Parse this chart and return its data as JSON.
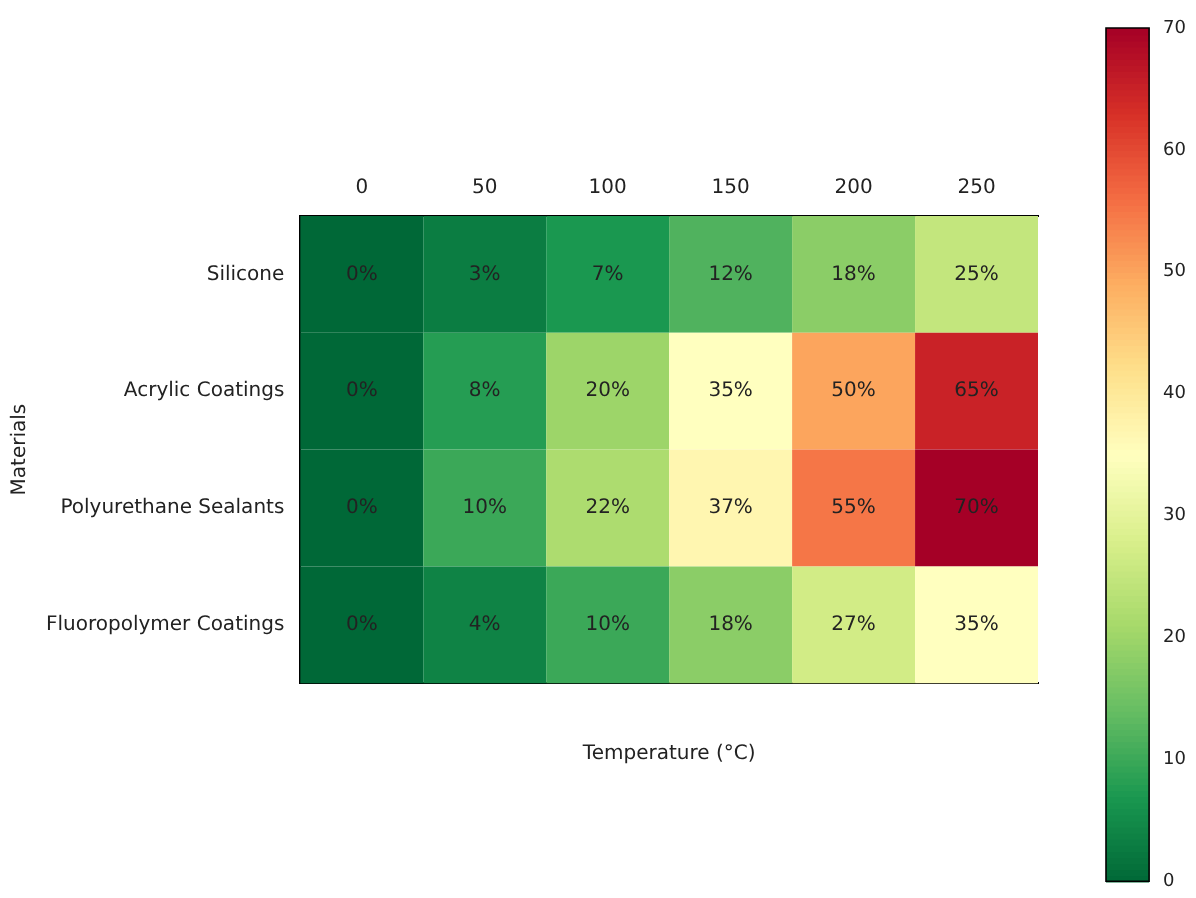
{
  "chart_data": {
    "type": "heatmap",
    "xlabel": "Temperature (°C)",
    "ylabel": "Materials",
    "clim": [
      0,
      70
    ],
    "cticks": [
      0,
      10,
      20,
      30,
      40,
      50,
      60,
      70
    ],
    "categories": [
      "0",
      "50",
      "100",
      "150",
      "200",
      "250"
    ],
    "y_categories": [
      "Silicone",
      "Acrylic Coatings",
      "Polyurethane Sealants",
      "Fluoropolymer Coatings"
    ],
    "cells": [
      [
        0,
        3,
        7,
        12,
        18,
        25
      ],
      [
        0,
        8,
        20,
        35,
        50,
        65
      ],
      [
        0,
        10,
        22,
        37,
        55,
        70
      ],
      [
        0,
        4,
        10,
        18,
        27,
        35
      ]
    ],
    "cell_labels": [
      [
        "0%",
        "3%",
        "7%",
        "12%",
        "18%",
        "25%"
      ],
      [
        "0%",
        "8%",
        "20%",
        "35%",
        "50%",
        "65%"
      ],
      [
        "0%",
        "10%",
        "22%",
        "37%",
        "55%",
        "70%"
      ],
      [
        "0%",
        "4%",
        "10%",
        "18%",
        "27%",
        "35%"
      ]
    ]
  }
}
